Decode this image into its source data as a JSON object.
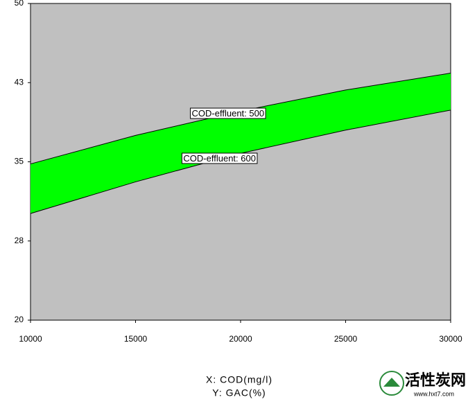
{
  "chart_data": {
    "type": "band",
    "x_label": "X: COD(mg/l)",
    "y_label": "Y: GAC(%)",
    "x": [
      10000,
      15000,
      20000,
      25000,
      30000
    ],
    "series": [
      {
        "name": "COD-effluent: 500",
        "color": "#000000",
        "values": [
          34.8,
          37.5,
          39.8,
          41.8,
          43.4
        ]
      },
      {
        "name": "COD-effluent: 600",
        "color": "#000000",
        "values": [
          30.1,
          33.1,
          35.8,
          38.0,
          39.9
        ]
      }
    ],
    "band_color": "#00ff00",
    "background": "#c0c0c0",
    "xlim": [
      10000,
      30000
    ],
    "xticks": [
      10000,
      15000,
      20000,
      25000,
      30000
    ],
    "ylim": [
      20,
      50
    ],
    "yticks": [
      20,
      {
        "value": 27.5,
        "label": "28"
      },
      35,
      {
        "value": 42.5,
        "label": "43"
      },
      50
    ]
  },
  "watermark": {
    "title": "活性炭网",
    "url": "www.hxt7.com"
  }
}
